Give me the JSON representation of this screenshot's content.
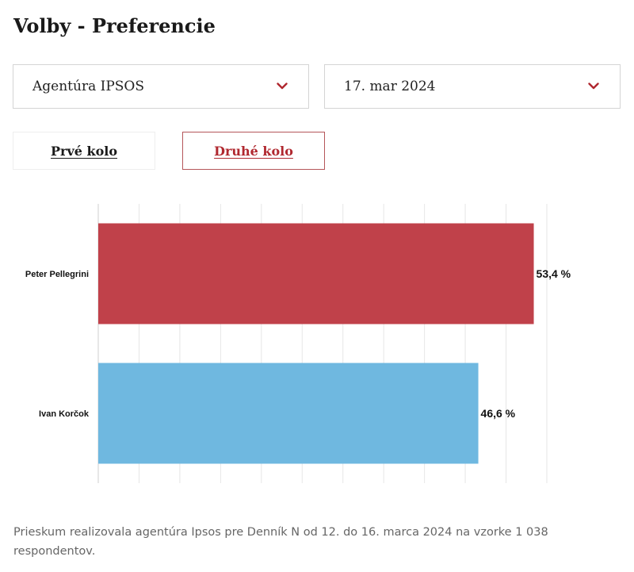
{
  "header": {
    "title": "Volby - Preferencie"
  },
  "filters": {
    "agency": {
      "value": "Agentúra IPSOS",
      "icon": "chevron-down-icon"
    },
    "date": {
      "value": "17. mar 2024",
      "icon": "chevron-down-icon"
    }
  },
  "tabs": [
    {
      "label": "Prvé kolo",
      "active": false
    },
    {
      "label": "Druhé kolo",
      "active": true
    }
  ],
  "colors": {
    "accent": "#b0282f",
    "series_1": "#c0414a",
    "series_2": "#6fb8e0"
  },
  "chart_data": {
    "type": "bar",
    "orientation": "horizontal",
    "categories": [
      "Peter Pellegrini",
      "Ivan Korčok"
    ],
    "values": [
      53.4,
      46.6
    ],
    "value_labels": [
      "53,4 %",
      "46,6 %"
    ],
    "colors": [
      "#c0414a",
      "#6fb8e0"
    ],
    "xlim": [
      0,
      55
    ],
    "grid": true
  },
  "footer": {
    "note": "Prieskum realizovala agentúra Ipsos pre Denník N od 12. do 16. marca 2024 na vzorke 1 038 respondentov."
  }
}
